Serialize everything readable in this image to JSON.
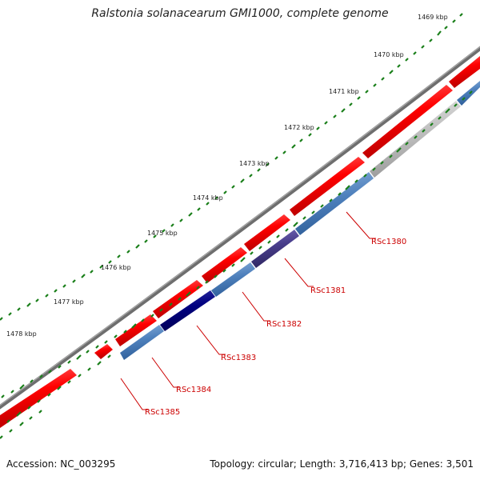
{
  "title": "Ralstonia solanacearum GMI1000, complete genome",
  "footer": {
    "accession": "Accession: NC_003295",
    "summary": "Topology: circular; Length: 3,716,413 bp; Genes: 3,501"
  },
  "colors": {
    "forward_gene": "#ff0000",
    "reverse_gene": "#4f81bd",
    "reverse_gene_dark": "#000080",
    "reverse_gene_mid": "#483d8b",
    "reverse_gene_gray": "#c0c0c0",
    "backbone": "#7a7a7a",
    "ticks": "#1a7f1a",
    "label": "#cc0000"
  },
  "kbp_labels": [
    "1469 kbp",
    "1470 kbp",
    "1471 kbp",
    "1472 kbp",
    "1473 kbp",
    "1474 kbp",
    "1475 kbp",
    "1476 kbp",
    "1477 kbp",
    "1478 kbp"
  ],
  "gene_labels": [
    "RSc1380",
    "RSc1381",
    "RSc1382",
    "RSc1383",
    "RSc1384",
    "RSc1385"
  ]
}
